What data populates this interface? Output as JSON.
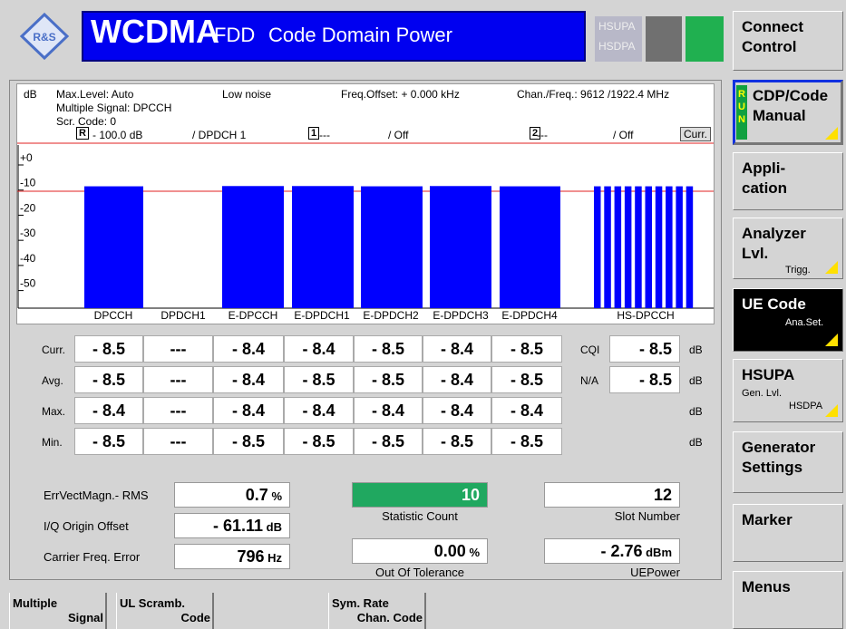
{
  "header": {
    "title": "WCDMA",
    "subtitle": "FDD",
    "mode": "Code Domain Power",
    "standards": [
      "HSUPA",
      "HSDPA"
    ]
  },
  "softkeys": [
    {
      "lines": [
        "Connect",
        "Control"
      ]
    },
    {
      "lines": [
        "CDP/Code",
        "Manual"
      ],
      "indicator": [
        "R",
        "U",
        "N"
      ]
    },
    {
      "lines": [
        "Appli-",
        "cation"
      ]
    },
    {
      "lines": [
        "Analyzer",
        "Lvl."
      ],
      "sub": "Trigg."
    },
    {
      "lines": [
        "UE Code"
      ],
      "sub": "Ana.Set."
    },
    {
      "lines": [
        "HSUPA"
      ],
      "sub": "Gen. Lvl.",
      "sub2": "HSDPA"
    },
    {
      "lines": [
        "Generator",
        "Settings"
      ]
    },
    {
      "lines": [
        "Marker"
      ]
    },
    {
      "lines": [
        "Menus"
      ]
    }
  ],
  "info": {
    "unit": "dB",
    "max_level": "Max.Level: Auto",
    "noise": "Low noise",
    "freq_offset": "Freq.Offset: + 0.000  kHz",
    "chan_freq": "Chan./Freq.: 9612 /1922.4  MHz",
    "signal": "Multiple Signal: DPCCH",
    "scr_code": "Scr. Code: 0"
  },
  "markers": [
    {
      "symbol": "R",
      "value": "- 100.0  dB",
      "channel": "/ DPDCH 1"
    },
    {
      "symbol": "1",
      "value": "---",
      "channel": "/ Off"
    },
    {
      "symbol": "2",
      "value": "---",
      "channel": "/ Off"
    }
  ],
  "curr_label": "Curr.",
  "graph": {
    "type": "bar",
    "categories": [
      "DPCCH",
      "DPDCH1",
      "E-DPCCH",
      "E-DPDCH1",
      "E-DPDCH2",
      "E-DPDCH3",
      "E-DPDCH4",
      "HS-DPCCH"
    ],
    "values": [
      -8.5,
      null,
      -8.4,
      -8.4,
      -8.5,
      -8.4,
      -8.5,
      -8.5
    ],
    "color": "#0000ff",
    "ylim": [
      -57,
      0
    ],
    "yticks": [
      {
        "value": 0,
        "label": "+0"
      },
      -10,
      -20,
      -30,
      -40,
      -50
    ]
  },
  "table": {
    "rows": [
      {
        "label": "Curr.",
        "cells": [
          "- 8.5",
          "---",
          "- 8.4",
          "- 8.4",
          "- 8.5",
          "- 8.4",
          "- 8.5"
        ],
        "extra_label": "CQI",
        "extra_value": "- 8.5",
        "unit": "dB"
      },
      {
        "label": "Avg.",
        "cells": [
          "- 8.5",
          "---",
          "- 8.4",
          "- 8.5",
          "- 8.5",
          "- 8.4",
          "- 8.5"
        ],
        "extra_label": "N/A",
        "extra_value": "- 8.5",
        "unit": "dB"
      },
      {
        "label": "Max.",
        "cells": [
          "- 8.4",
          "---",
          "- 8.4",
          "- 8.4",
          "- 8.4",
          "- 8.4",
          "- 8.4"
        ],
        "unit": "dB"
      },
      {
        "label": "Min.",
        "cells": [
          "- 8.5",
          "---",
          "- 8.5",
          "- 8.5",
          "- 8.5",
          "- 8.5",
          "- 8.5"
        ],
        "unit": "dB"
      }
    ]
  },
  "results": {
    "left": [
      {
        "label": "ErrVectMagn.- RMS",
        "value": "0.7",
        "unit": "%"
      },
      {
        "label": "I/Q Origin Offset",
        "value": "- 61.11",
        "unit": "dB"
      },
      {
        "label": "Carrier Freq. Error",
        "value": "796",
        "unit": "Hz"
      }
    ],
    "statistic_count": {
      "value": "10",
      "label": "Statistic Count"
    },
    "slot_number": {
      "value": "12",
      "label": "Slot Number"
    },
    "out_of_tolerance": {
      "value": "0.00",
      "unit": "%",
      "label": "Out Of Tolerance"
    },
    "ue_power": {
      "value": "- 2.76",
      "unit": "dBm",
      "label": "UEPower"
    }
  },
  "bottom_softkeys": [
    {
      "lines": [
        "Multiple",
        "Signal"
      ]
    },
    {
      "lines": [
        "UL Scramb.",
        "Code"
      ]
    },
    {
      "lines": [
        "Sym. Rate",
        "Chan. Code"
      ]
    }
  ]
}
